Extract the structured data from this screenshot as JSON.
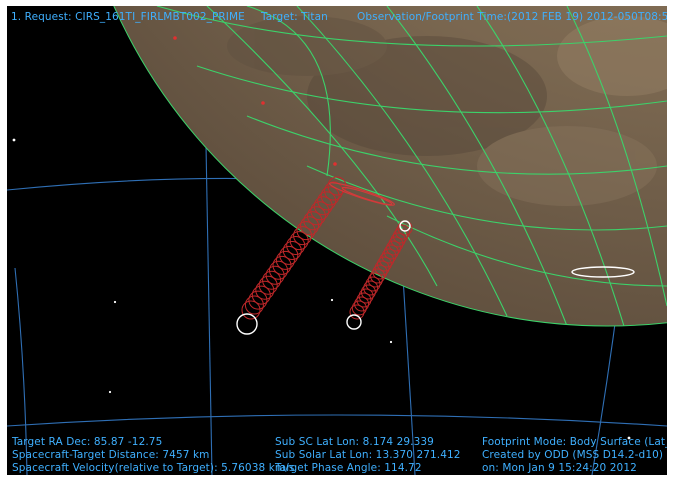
{
  "header": {
    "request": "1. Request: CIRS_161TI_FIRLMBT002_PRIME",
    "target": "Target: Titan",
    "obs_time": "Observation/Footprint Time:(2012 FEB 19) 2012-050T08:54:38.12"
  },
  "footer": {
    "left": [
      "Target RA Dec: 85.87  -12.75",
      "Spacecraft-Target Distance:    7457 km",
      "Spacecraft Velocity(relative to Target): 5.76038 km/s"
    ],
    "middle": [
      "Sub SC Lat Lon:  8.174  29.339",
      "Sub Solar Lat Lon: 13.370  271.412",
      "Target Phase Angle: 114.72"
    ],
    "right": [
      "Footprint Mode: Body Surface (Lat_Lon)",
      "Created by ODD (MSS D14.2-d10)",
      "on: Mon Jan  9 15:24:20 2012"
    ]
  },
  "colors": {
    "background": "#000000",
    "hud_text": "#3fb0ff",
    "sky_grid": "#2f6fb5",
    "planet_grid": "#3cd26a",
    "footprint": "#c0282a",
    "footprint_end": "#ffffff"
  }
}
